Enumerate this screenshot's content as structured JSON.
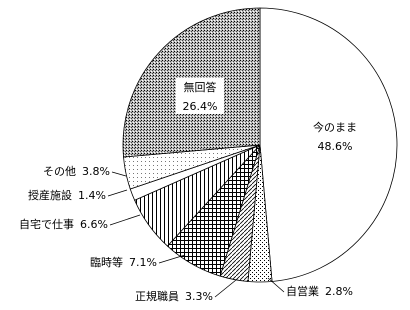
{
  "chart_data": {
    "type": "pie",
    "categories": [
      "今のまま",
      "自営業",
      "正規職員",
      "臨時等",
      "自宅で仕事",
      "授産施設",
      "その他",
      "無回答"
    ],
    "values": [
      48.6,
      2.8,
      3.3,
      7.1,
      6.6,
      1.4,
      3.8,
      26.4
    ],
    "value_labels": [
      "48.6%",
      "2.8%",
      "3.3%",
      "7.1%",
      "6.6%",
      "1.4%",
      "3.8%",
      "26.4%"
    ]
  }
}
